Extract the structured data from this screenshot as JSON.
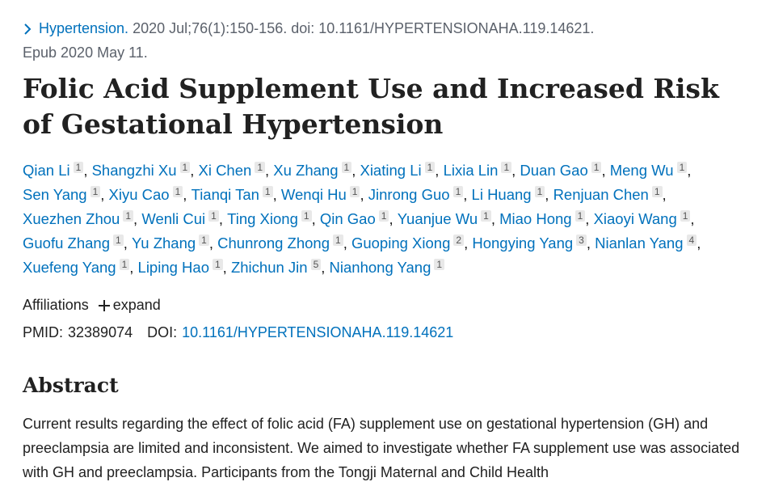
{
  "citation": {
    "journal": "Hypertension.",
    "details": "2020 Jul;76(1):150-156. doi: 10.1161/HYPERTENSIONAHA.119.14621.",
    "epub": "Epub 2020 May 11."
  },
  "title": "Folic Acid Supplement Use and Increased Risk of Gestational Hypertension",
  "authors": [
    {
      "name": "Qian Li",
      "aff": "1"
    },
    {
      "name": "Shangzhi Xu",
      "aff": "1"
    },
    {
      "name": "Xi Chen",
      "aff": "1"
    },
    {
      "name": "Xu Zhang",
      "aff": "1"
    },
    {
      "name": "Xiating Li",
      "aff": "1"
    },
    {
      "name": "Lixia Lin",
      "aff": "1"
    },
    {
      "name": "Duan Gao",
      "aff": "1"
    },
    {
      "name": "Meng Wu",
      "aff": "1"
    },
    {
      "name": "Sen Yang",
      "aff": "1"
    },
    {
      "name": "Xiyu Cao",
      "aff": "1"
    },
    {
      "name": "Tianqi Tan",
      "aff": "1"
    },
    {
      "name": "Wenqi Hu",
      "aff": "1"
    },
    {
      "name": "Jinrong Guo",
      "aff": "1"
    },
    {
      "name": "Li Huang",
      "aff": "1"
    },
    {
      "name": "Renjuan Chen",
      "aff": "1"
    },
    {
      "name": "Xuezhen Zhou",
      "aff": "1"
    },
    {
      "name": "Wenli Cui",
      "aff": "1"
    },
    {
      "name": "Ting Xiong",
      "aff": "1"
    },
    {
      "name": "Qin Gao",
      "aff": "1"
    },
    {
      "name": "Yuanjue Wu",
      "aff": "1"
    },
    {
      "name": "Miao Hong",
      "aff": "1"
    },
    {
      "name": "Xiaoyi Wang",
      "aff": "1"
    },
    {
      "name": "Guofu Zhang",
      "aff": "1"
    },
    {
      "name": "Yu Zhang",
      "aff": "1"
    },
    {
      "name": "Chunrong Zhong",
      "aff": "1"
    },
    {
      "name": "Guoping Xiong",
      "aff": "2"
    },
    {
      "name": "Hongying Yang",
      "aff": "3"
    },
    {
      "name": "Nianlan Yang",
      "aff": "4"
    },
    {
      "name": "Xuefeng Yang",
      "aff": "1"
    },
    {
      "name": "Liping Hao",
      "aff": "1"
    },
    {
      "name": "Zhichun Jin",
      "aff": "5"
    },
    {
      "name": "Nianhong Yang",
      "aff": "1"
    }
  ],
  "affiliations": {
    "label": "Affiliations",
    "toggle": "expand"
  },
  "identifiers": {
    "pmid_label": "PMID:",
    "pmid": "32389074",
    "doi_label": "DOI:",
    "doi": "10.1161/HYPERTENSIONAHA.119.14621"
  },
  "abstract": {
    "heading": "Abstract",
    "text": "Current results regarding the effect of folic acid (FA) supplement use on gestational hypertension (GH) and preeclampsia are limited and inconsistent. We aimed to investigate whether FA supplement use was associated with GH and preeclampsia. Participants from the Tongji Maternal and Child Health"
  }
}
